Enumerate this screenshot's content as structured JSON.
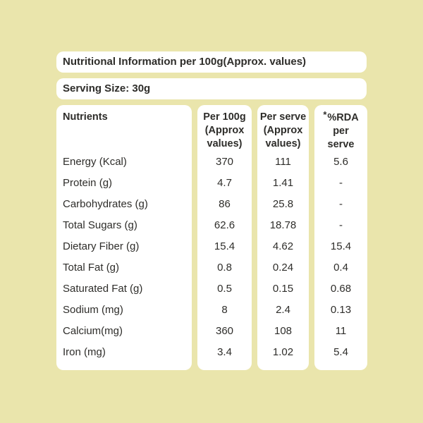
{
  "page": {
    "background_color": "#eae5ac",
    "box_color": "#ffffff",
    "text_color": "#2e2d2a"
  },
  "title_bar": {
    "text": "Nutritional Information per 100g(Approx. values)"
  },
  "serving_bar": {
    "text": "Serving Size: 30g"
  },
  "table": {
    "columns": [
      {
        "key": "nutrient",
        "header_lines": [
          "Nutrients"
        ]
      },
      {
        "key": "per_100g",
        "header_lines": [
          "Per 100g",
          "(Approx",
          "values)"
        ]
      },
      {
        "key": "per_serve",
        "header_lines": [
          "Per serve",
          "(Approx",
          "values)"
        ]
      },
      {
        "key": "rda",
        "asterisk": "*",
        "header_lines": [
          "%RDA",
          "per",
          "serve"
        ]
      }
    ],
    "rows": [
      {
        "nutrient": "Energy (Kcal)",
        "per_100g": "370",
        "per_serve": "111",
        "rda": "5.6"
      },
      {
        "nutrient": "Protein (g)",
        "per_100g": "4.7",
        "per_serve": "1.41",
        "rda": "-"
      },
      {
        "nutrient": "Carbohydrates (g)",
        "per_100g": "86",
        "per_serve": "25.8",
        "rda": "-"
      },
      {
        "nutrient": "Total Sugars (g)",
        "per_100g": "62.6",
        "per_serve": "18.78",
        "rda": "-"
      },
      {
        "nutrient": "Dietary Fiber (g)",
        "per_100g": "15.4",
        "per_serve": "4.62",
        "rda": "15.4"
      },
      {
        "nutrient": "Total Fat (g)",
        "per_100g": "0.8",
        "per_serve": "0.24",
        "rda": "0.4"
      },
      {
        "nutrient": "Saturated Fat (g)",
        "per_100g": "0.5",
        "per_serve": "0.15",
        "rda": "0.68"
      },
      {
        "nutrient": "Sodium (mg)",
        "per_100g": "8",
        "per_serve": "2.4",
        "rda": "0.13"
      },
      {
        "nutrient": "Calcium(mg)",
        "per_100g": "360",
        "per_serve": "108",
        "rda": "11"
      },
      {
        "nutrient": "Iron (mg)",
        "per_100g": "3.4",
        "per_serve": "1.02",
        "rda": "5.4"
      }
    ]
  }
}
